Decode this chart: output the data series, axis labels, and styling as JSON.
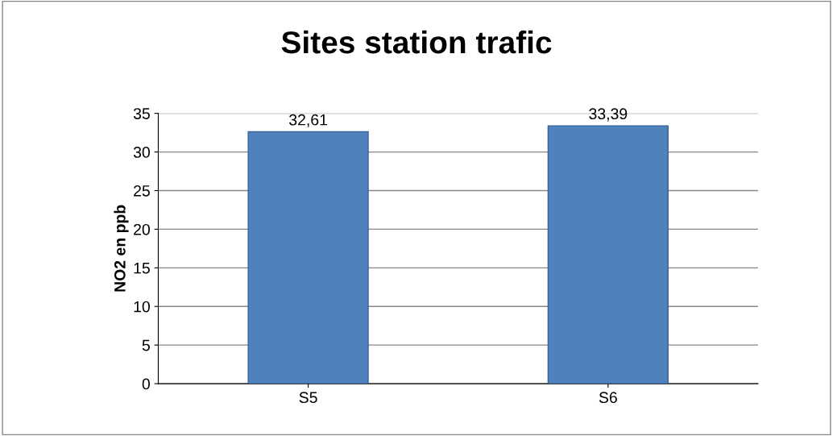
{
  "chart_data": {
    "type": "bar",
    "title": "Sites station trafic",
    "ylabel": "NO2 en ppb",
    "categories": [
      "S5",
      "S6"
    ],
    "values": [
      32.61,
      33.39
    ],
    "value_labels": [
      "32,61",
      "33,39"
    ],
    "color": "#4f81bd",
    "ylim": [
      0,
      35
    ],
    "yticks": [
      0,
      5,
      10,
      15,
      20,
      25,
      30,
      35
    ],
    "grid": "y",
    "legend": false
  }
}
